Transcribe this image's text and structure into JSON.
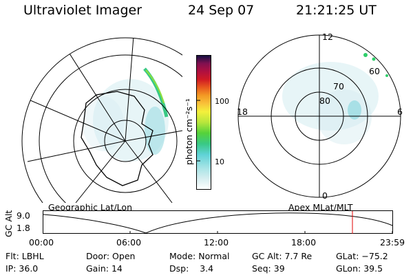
{
  "header": {
    "instrument": "Ultraviolet Imager",
    "date": "24 Sep 07",
    "time": "21:21:25 UT"
  },
  "colorbar": {
    "unit_label": "photon cm⁻²s⁻¹",
    "ticks": [
      "100",
      "10"
    ]
  },
  "polar_plot": {
    "ring_labels": [
      "80",
      "70",
      "60"
    ],
    "mlt_labels": [
      "12",
      "18",
      "6",
      "0"
    ]
  },
  "orbit_panel": {
    "left_caption": "Geographic Lat/Lon",
    "right_caption": "Apex MLat/MLT",
    "y_axis_label": "GC Alt",
    "y_ticks": [
      "9.0",
      "1.8"
    ],
    "x_ticks": [
      "00:00",
      "06:00",
      "12:00",
      "18:00",
      "23:59"
    ],
    "cursor_time": "21:21:25",
    "cursor_color": "#e00000"
  },
  "status": {
    "row1": [
      {
        "key": "Flt:",
        "value": "LBHL"
      },
      {
        "key": "Door:",
        "value": "Open"
      },
      {
        "key": "Mode:",
        "value": "Normal"
      },
      {
        "key": "GC Alt:",
        "value": "7.7 Re"
      },
      {
        "key": "GLat:",
        "value": "−75.2"
      }
    ],
    "row2": [
      {
        "key": "IP:",
        "value": "36.0"
      },
      {
        "key": "Gain:",
        "value": "14"
      },
      {
        "key": "Dsp:",
        "value": "3.4"
      },
      {
        "key": "Seq:",
        "value": "39"
      },
      {
        "key": "GLon:",
        "value": "39.5"
      }
    ]
  },
  "colors": {
    "colorbar_stops": [
      "#ffffff",
      "#d7eef0",
      "#a8e4e6",
      "#5fd2d6",
      "#39c985",
      "#55d23a",
      "#b8e63c",
      "#f4f03c",
      "#f8c23a",
      "#f39a24",
      "#e85a1e",
      "#d01a24",
      "#b01040",
      "#801050",
      "#401040",
      "#101040"
    ]
  }
}
